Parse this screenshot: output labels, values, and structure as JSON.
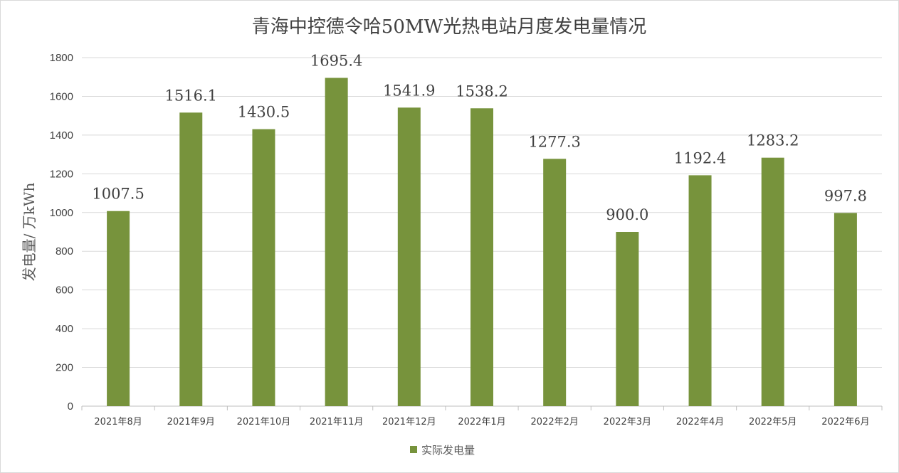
{
  "chart_data": {
    "type": "bar",
    "title": "青海中控德令哈50MW光热电站月度发电量情况",
    "ylabel": "发电量/ 万kWh",
    "xlabel": "",
    "ylim": [
      0,
      1800
    ],
    "yticks": [
      0,
      200,
      400,
      600,
      800,
      1000,
      1200,
      1400,
      1600,
      1800
    ],
    "grid": true,
    "legend_position": "bottom",
    "categories": [
      "2021年8月",
      "2021年9月",
      "2021年10月",
      "2021年11月",
      "2021年12月",
      "2022年1月",
      "2022年2月",
      "2022年3月",
      "2022年4月",
      "2022年5月",
      "2022年6月"
    ],
    "series": [
      {
        "name": "实际发电量",
        "color": "#77933c",
        "values": [
          1007.5,
          1516.1,
          1430.5,
          1695.4,
          1541.9,
          1538.2,
          1277.3,
          900.0,
          1192.4,
          1283.2,
          997.8
        ],
        "labels": [
          "1007.5",
          "1516.1",
          "1430.5",
          "1695.4",
          "1541.9",
          "1538.2",
          "1277.3",
          "900.0",
          "1192.4",
          "1283.2",
          "997.8"
        ]
      }
    ]
  }
}
